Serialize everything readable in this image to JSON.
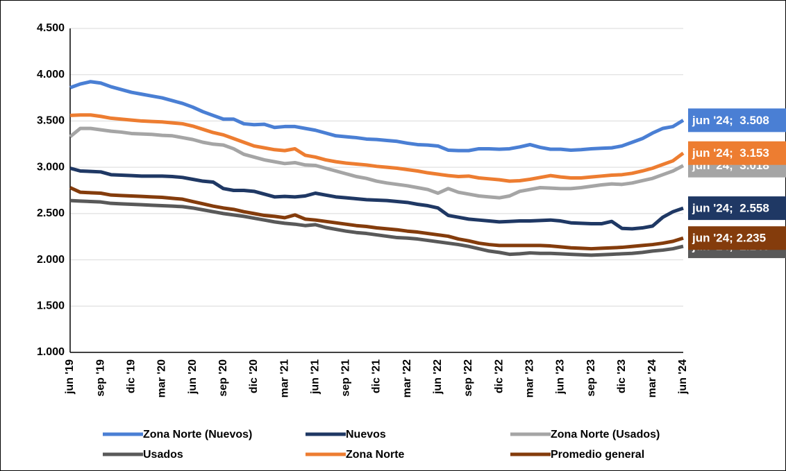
{
  "chart_data": {
    "type": "line",
    "categories": [
      "jun '19",
      null,
      null,
      "sep '19",
      null,
      null,
      "dic '19",
      null,
      null,
      "mar '20",
      null,
      null,
      "jun '20",
      null,
      null,
      "sep '20",
      null,
      null,
      "dic '20",
      null,
      null,
      "mar '21",
      null,
      null,
      "jun '21",
      null,
      null,
      "sep '21",
      null,
      null,
      "dic '21",
      null,
      null,
      "mar '22",
      null,
      null,
      "jun '22",
      null,
      null,
      "sep '22",
      null,
      null,
      "dic '22",
      null,
      null,
      "mar '23",
      null,
      null,
      "jun '23",
      null,
      null,
      "sep '23",
      null,
      null,
      "dic '23",
      null,
      null,
      "mar '24",
      null,
      null,
      "jun '24"
    ],
    "ylim": [
      1000,
      4500
    ],
    "yticks": [
      {
        "value": 1000,
        "label": "1.000"
      },
      {
        "value": 1500,
        "label": "1.500"
      },
      {
        "value": 2000,
        "label": "2.000"
      },
      {
        "value": 2500,
        "label": "2.500"
      },
      {
        "value": 3000,
        "label": "3.000"
      },
      {
        "value": 3500,
        "label": "3.500"
      },
      {
        "value": 4000,
        "label": "4.000"
      },
      {
        "value": 4500,
        "label": "4.500"
      }
    ],
    "grid": true,
    "series": [
      {
        "name": "Zona Norte (Nuevos)",
        "color": "#4a7fd4",
        "values": [
          3860,
          3900,
          3925,
          3910,
          3870,
          3840,
          3810,
          3790,
          3770,
          3750,
          3720,
          3690,
          3650,
          3600,
          3560,
          3520,
          3520,
          3470,
          3460,
          3465,
          3430,
          3440,
          3440,
          3420,
          3400,
          3370,
          3340,
          3330,
          3320,
          3305,
          3300,
          3290,
          3280,
          3260,
          3245,
          3240,
          3230,
          3185,
          3180,
          3180,
          3200,
          3200,
          3195,
          3200,
          3220,
          3245,
          3215,
          3195,
          3195,
          3185,
          3190,
          3200,
          3205,
          3210,
          3230,
          3270,
          3310,
          3370,
          3420,
          3440,
          3508
        ],
        "value_labels": [
          null,
          null,
          null,
          null,
          null,
          null,
          null,
          null,
          null,
          null,
          null,
          null,
          null,
          null,
          null,
          null,
          null,
          null,
          null,
          null,
          null,
          null,
          null,
          null,
          null,
          null,
          null,
          null,
          null,
          null,
          null,
          null,
          null,
          null,
          null,
          null,
          null,
          null,
          null,
          null,
          null,
          null,
          null,
          null,
          null,
          null,
          null,
          null,
          null,
          null,
          null,
          null,
          null,
          null,
          null,
          null,
          null,
          null,
          null,
          null,
          "jun '24;  3.508"
        ]
      },
      {
        "name": "Nuevos",
        "color": "#1f3864",
        "values": [
          2990,
          2960,
          2955,
          2950,
          2920,
          2915,
          2910,
          2905,
          2905,
          2905,
          2900,
          2890,
          2870,
          2850,
          2840,
          2770,
          2750,
          2750,
          2740,
          2710,
          2680,
          2685,
          2680,
          2690,
          2720,
          2700,
          2680,
          2670,
          2660,
          2650,
          2645,
          2640,
          2630,
          2620,
          2600,
          2585,
          2560,
          2480,
          2460,
          2440,
          2430,
          2420,
          2410,
          2415,
          2420,
          2420,
          2425,
          2430,
          2420,
          2400,
          2395,
          2390,
          2390,
          2415,
          2340,
          2335,
          2345,
          2365,
          2460,
          2520,
          2558
        ],
        "value_labels": [
          null,
          null,
          null,
          null,
          null,
          null,
          null,
          null,
          null,
          null,
          null,
          null,
          null,
          null,
          null,
          null,
          null,
          null,
          null,
          null,
          null,
          null,
          null,
          null,
          null,
          null,
          null,
          null,
          null,
          null,
          null,
          null,
          null,
          null,
          null,
          null,
          null,
          null,
          null,
          null,
          null,
          null,
          null,
          null,
          null,
          null,
          null,
          null,
          null,
          null,
          null,
          null,
          null,
          null,
          null,
          null,
          null,
          null,
          null,
          null,
          "jun '24;  2.558"
        ]
      },
      {
        "name": "Zona Norte (Usados)",
        "color": "#a5a5a5",
        "values": [
          3330,
          3420,
          3420,
          3405,
          3390,
          3380,
          3365,
          3360,
          3355,
          3345,
          3340,
          3320,
          3300,
          3270,
          3250,
          3240,
          3200,
          3140,
          3110,
          3080,
          3060,
          3040,
          3050,
          3025,
          3020,
          2990,
          2960,
          2930,
          2900,
          2880,
          2850,
          2830,
          2815,
          2800,
          2780,
          2760,
          2720,
          2770,
          2730,
          2710,
          2690,
          2680,
          2670,
          2690,
          2740,
          2760,
          2780,
          2775,
          2770,
          2770,
          2780,
          2795,
          2810,
          2820,
          2815,
          2830,
          2855,
          2880,
          2920,
          2960,
          3018
        ],
        "value_labels": [
          null,
          null,
          null,
          null,
          null,
          null,
          null,
          null,
          null,
          null,
          null,
          null,
          null,
          null,
          null,
          null,
          null,
          null,
          null,
          null,
          null,
          null,
          null,
          null,
          null,
          null,
          null,
          null,
          null,
          null,
          null,
          null,
          null,
          null,
          null,
          null,
          null,
          null,
          null,
          null,
          null,
          null,
          null,
          null,
          null,
          null,
          null,
          null,
          null,
          null,
          null,
          null,
          null,
          null,
          null,
          null,
          null,
          null,
          null,
          null,
          "jun '24;  3.018"
        ]
      },
      {
        "name": "Usados",
        "color": "#595959",
        "values": [
          2640,
          2635,
          2630,
          2625,
          2610,
          2605,
          2600,
          2595,
          2590,
          2585,
          2580,
          2575,
          2560,
          2540,
          2520,
          2500,
          2485,
          2470,
          2450,
          2430,
          2410,
          2395,
          2385,
          2370,
          2380,
          2350,
          2330,
          2310,
          2295,
          2285,
          2270,
          2255,
          2240,
          2235,
          2225,
          2210,
          2195,
          2180,
          2165,
          2145,
          2120,
          2095,
          2080,
          2060,
          2065,
          2075,
          2070,
          2070,
          2065,
          2060,
          2055,
          2050,
          2055,
          2060,
          2065,
          2070,
          2080,
          2095,
          2105,
          2120,
          2146
        ],
        "value_labels": [
          null,
          null,
          null,
          null,
          null,
          null,
          null,
          null,
          null,
          null,
          null,
          null,
          null,
          null,
          null,
          null,
          null,
          null,
          null,
          null,
          null,
          null,
          null,
          null,
          null,
          null,
          null,
          null,
          null,
          null,
          null,
          null,
          null,
          null,
          null,
          null,
          null,
          null,
          null,
          null,
          null,
          null,
          null,
          null,
          null,
          null,
          null,
          null,
          null,
          null,
          null,
          null,
          null,
          null,
          null,
          null,
          null,
          null,
          null,
          null,
          "jun '24;  2.146"
        ]
      },
      {
        "name": "Zona Norte",
        "color": "#ed7d31",
        "values": [
          3560,
          3565,
          3565,
          3550,
          3530,
          3520,
          3510,
          3500,
          3495,
          3490,
          3480,
          3470,
          3445,
          3410,
          3375,
          3350,
          3310,
          3270,
          3230,
          3210,
          3190,
          3180,
          3200,
          3130,
          3110,
          3080,
          3060,
          3045,
          3035,
          3025,
          3010,
          3000,
          2990,
          2975,
          2960,
          2940,
          2925,
          2910,
          2900,
          2905,
          2885,
          2875,
          2865,
          2850,
          2855,
          2870,
          2890,
          2910,
          2895,
          2885,
          2885,
          2895,
          2905,
          2915,
          2920,
          2935,
          2960,
          2990,
          3030,
          3070,
          3153
        ],
        "value_labels": [
          null,
          null,
          null,
          null,
          null,
          null,
          null,
          null,
          null,
          null,
          null,
          null,
          null,
          null,
          null,
          null,
          null,
          null,
          null,
          null,
          null,
          null,
          null,
          null,
          null,
          null,
          null,
          null,
          null,
          null,
          null,
          null,
          null,
          null,
          null,
          null,
          null,
          null,
          null,
          null,
          null,
          null,
          null,
          null,
          null,
          null,
          null,
          null,
          null,
          null,
          null,
          null,
          null,
          null,
          null,
          null,
          null,
          null,
          null,
          null,
          "jun '24;  3.153"
        ]
      },
      {
        "name": "Promedio general",
        "color": "#843c0c",
        "values": [
          2780,
          2730,
          2725,
          2720,
          2700,
          2695,
          2690,
          2685,
          2680,
          2675,
          2665,
          2655,
          2630,
          2605,
          2580,
          2560,
          2545,
          2520,
          2500,
          2480,
          2470,
          2455,
          2485,
          2440,
          2430,
          2415,
          2400,
          2385,
          2370,
          2360,
          2345,
          2335,
          2325,
          2310,
          2300,
          2285,
          2270,
          2255,
          2225,
          2205,
          2180,
          2165,
          2155,
          2155,
          2155,
          2155,
          2155,
          2150,
          2140,
          2130,
          2125,
          2120,
          2125,
          2130,
          2135,
          2145,
          2155,
          2165,
          2180,
          2200,
          2235
        ],
        "value_labels": [
          null,
          null,
          null,
          null,
          null,
          null,
          null,
          null,
          null,
          null,
          null,
          null,
          null,
          null,
          null,
          null,
          null,
          null,
          null,
          null,
          null,
          null,
          null,
          null,
          null,
          null,
          null,
          null,
          null,
          null,
          null,
          null,
          null,
          null,
          null,
          null,
          null,
          null,
          null,
          null,
          null,
          null,
          null,
          null,
          null,
          null,
          null,
          null,
          null,
          null,
          null,
          null,
          null,
          null,
          null,
          null,
          null,
          null,
          null,
          null,
          "jun '24; 2.235"
        ]
      }
    ]
  }
}
